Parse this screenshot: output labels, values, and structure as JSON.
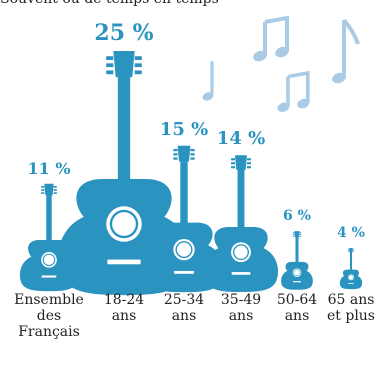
{
  "header": {
    "text": "Souvent ou de temps en temps"
  },
  "colors": {
    "accent": "#2a93bf",
    "note": "#a9cbe6",
    "hole": "#ffffff"
  },
  "chart_data": {
    "type": "bar",
    "style": "pictogram-guitars",
    "categories": [
      [
        "Ensemble",
        "des",
        "Français"
      ],
      [
        "18-24",
        "ans"
      ],
      [
        "25-34",
        "ans"
      ],
      [
        "35-49",
        "ans"
      ],
      [
        "50-64",
        "ans"
      ],
      [
        "65 ans",
        "et plus"
      ]
    ],
    "values": [
      11,
      25,
      15,
      14,
      6,
      4
    ],
    "value_labels": [
      "11 %",
      "25 %",
      "15 %",
      "14 %",
      "6 %",
      "4 %"
    ],
    "unit": "%"
  }
}
